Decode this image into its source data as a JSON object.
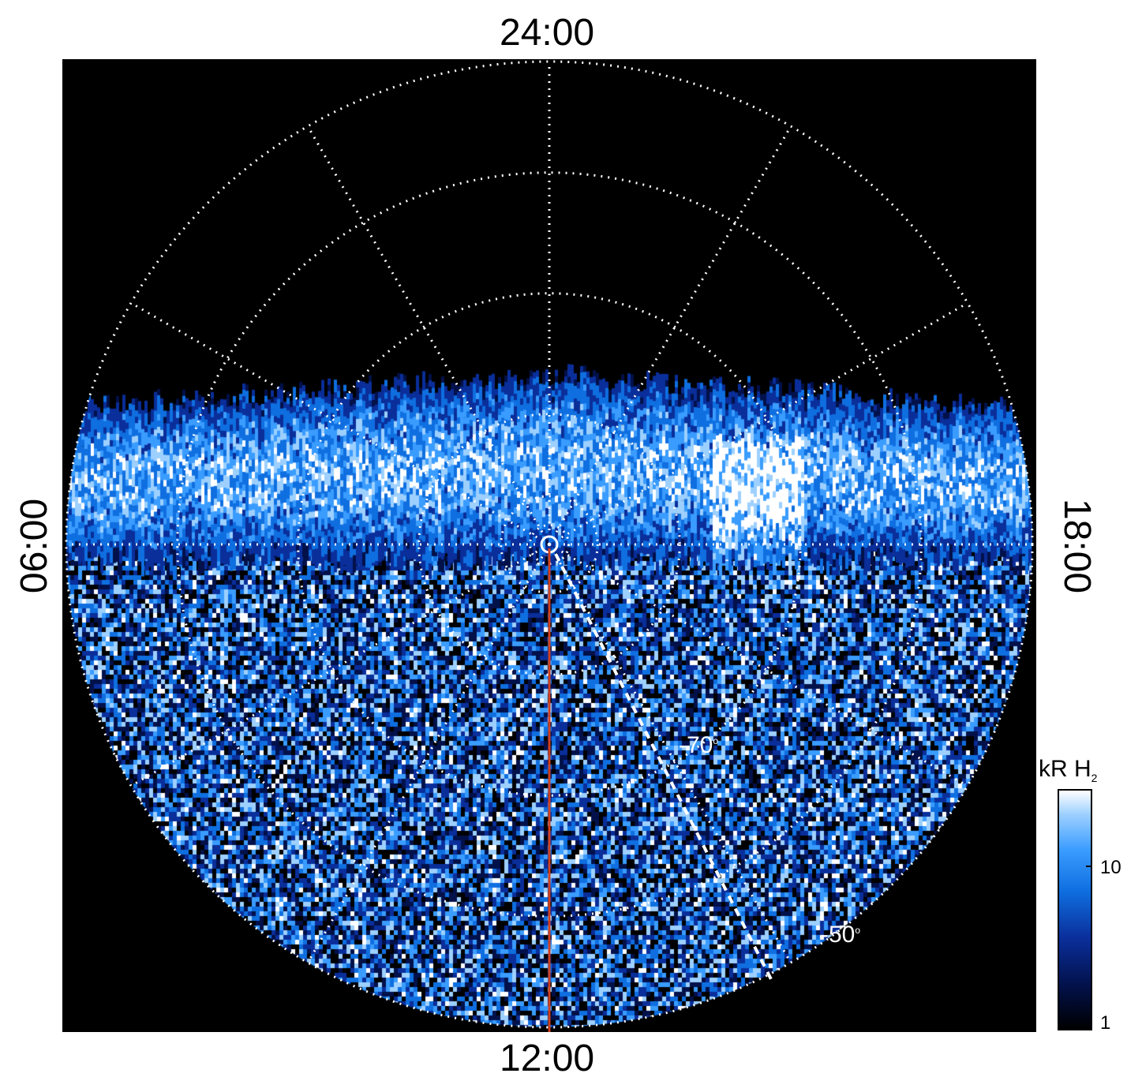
{
  "time_labels": {
    "top": "24:00",
    "bottom": "12:00",
    "left": "06:00",
    "right": "18:00"
  },
  "latitude_labels": {
    "inner": "-70",
    "outer": "-50",
    "degree": "o"
  },
  "colorbar": {
    "title_main": "kR H",
    "title_sub": "2",
    "tick_high": "10",
    "tick_low": "1",
    "scale": "log",
    "range": [
      1,
      25
    ]
  },
  "colors": {
    "background": "#000000",
    "grid": "#ffffff",
    "meridian_line": "#d04020",
    "aurora_bright": "#ffffff",
    "aurora_mid": "#2f8fff",
    "aurora_dark": "#02114a"
  }
}
